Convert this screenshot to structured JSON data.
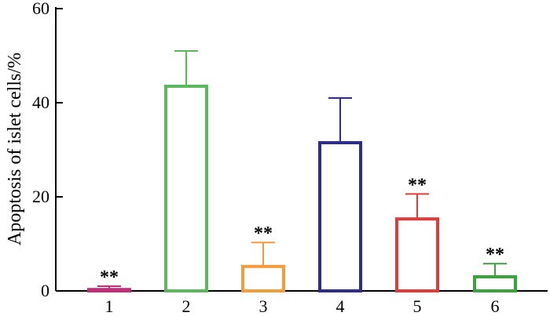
{
  "chart_data": {
    "type": "bar",
    "categories": [
      "1",
      "2",
      "3",
      "4",
      "5",
      "6"
    ],
    "values": [
      0.3,
      43.5,
      5.2,
      31.5,
      15.3,
      3.0
    ],
    "error_upper": [
      1.0,
      51.0,
      10.3,
      41.0,
      20.6,
      5.8
    ],
    "significance": [
      "**",
      "",
      "**",
      "",
      "**",
      "**"
    ],
    "bar_colors": [
      "#c0307a",
      "#5cb85c",
      "#f39c3a",
      "#2e2e8a",
      "#e53a3a",
      "#3aa33a"
    ],
    "title": "",
    "xlabel": "",
    "ylabel": "Apoptosis of islet cells/%",
    "ylim": [
      0,
      60
    ],
    "yticks": [
      "0",
      "20",
      "40",
      "60"
    ],
    "grid": false,
    "legend": "none"
  }
}
